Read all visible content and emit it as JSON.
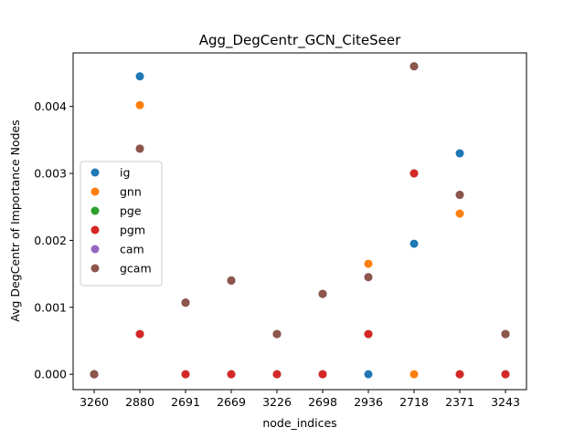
{
  "chart_data": {
    "type": "scatter",
    "title": "Agg_DegCentr_GCN_CiteSeer",
    "xlabel": "node_indices",
    "ylabel": "Avg DegCentr of Importance Nodes",
    "categories": [
      "3260",
      "2880",
      "2691",
      "2669",
      "3226",
      "2698",
      "2936",
      "2718",
      "2371",
      "3243"
    ],
    "ylim": [
      -0.00023,
      0.0048
    ],
    "yticks": [
      0.0,
      0.001,
      0.002,
      0.003,
      0.004
    ],
    "ytick_labels": [
      "0.000",
      "0.001",
      "0.002",
      "0.003",
      "0.004"
    ],
    "grid": false,
    "legend_position": "center-left",
    "series": [
      {
        "name": "ig",
        "color": "#1f77b4",
        "values": [
          0.0,
          0.00445,
          0.00107,
          0.0014,
          0.0006,
          0.0012,
          0.0,
          0.00195,
          0.0033,
          0.0006
        ]
      },
      {
        "name": "gnn",
        "color": "#ff7f0e",
        "values": [
          0.0,
          0.00402,
          0.00107,
          0.0014,
          0.0006,
          0.0012,
          0.00165,
          0.0,
          0.0024,
          0.0006
        ]
      },
      {
        "name": "pge",
        "color": "#2ca02c",
        "values": [
          0.0,
          0.0006,
          0.0,
          0.0,
          0.0,
          0.0,
          0.0006,
          0.003,
          0.0,
          0.0
        ]
      },
      {
        "name": "pgm",
        "color": "#d62728",
        "values": [
          0.0,
          0.0006,
          0.0,
          0.0,
          0.0,
          0.0,
          0.0006,
          0.003,
          0.0,
          0.0
        ]
      },
      {
        "name": "cam",
        "color": "#9467bd",
        "values": [
          0.0,
          0.00337,
          0.00107,
          0.0014,
          0.0006,
          0.0012,
          0.00145,
          0.0046,
          0.00268,
          0.0006
        ]
      },
      {
        "name": "gcam",
        "color": "#8c564b",
        "values": [
          0.0,
          0.00337,
          0.00107,
          0.0014,
          0.0006,
          0.0012,
          0.00145,
          0.0046,
          0.00268,
          0.0006
        ]
      }
    ]
  }
}
